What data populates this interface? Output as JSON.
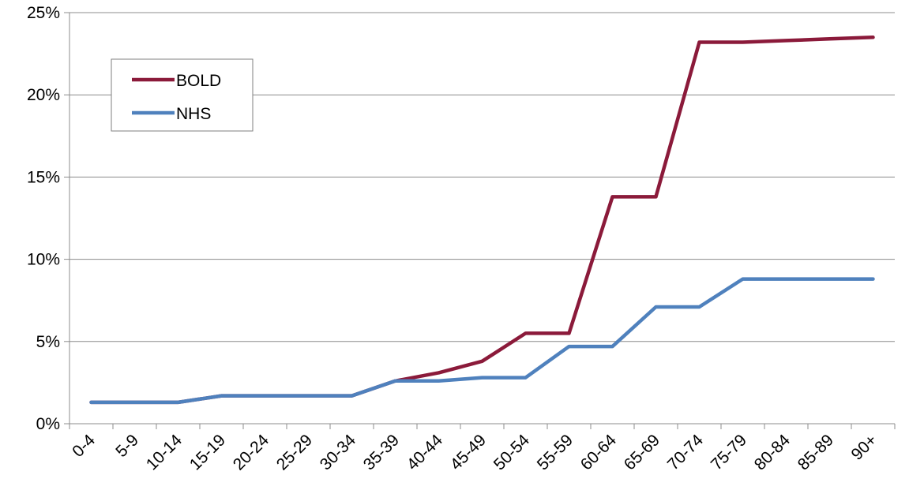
{
  "chart_data": {
    "type": "line",
    "categories": [
      "0-4",
      "5-9",
      "10-14",
      "15-19",
      "20-24",
      "25-29",
      "30-34",
      "35-39",
      "40-44",
      "45-49",
      "50-54",
      "55-59",
      "60-64",
      "65-69",
      "70-74",
      "75-79",
      "80-84",
      "85-89",
      "90+"
    ],
    "series": [
      {
        "name": "BOLD",
        "color": "#8B1A3A",
        "values": [
          1.3,
          1.3,
          1.3,
          1.7,
          1.7,
          1.7,
          1.7,
          2.6,
          3.1,
          3.8,
          5.5,
          5.5,
          13.8,
          13.8,
          23.2,
          23.2,
          23.3,
          23.4,
          23.5
        ]
      },
      {
        "name": "NHS",
        "color": "#4F81BD",
        "values": [
          1.3,
          1.3,
          1.3,
          1.7,
          1.7,
          1.7,
          1.7,
          2.6,
          2.6,
          2.8,
          2.8,
          4.7,
          4.7,
          7.1,
          7.1,
          8.8,
          8.8,
          8.8,
          8.8
        ]
      }
    ],
    "y_ticks": [
      "0%",
      "5%",
      "10%",
      "15%",
      "20%",
      "25%"
    ],
    "ylim": [
      0,
      25
    ],
    "grid": true,
    "legend_position": "top-left"
  }
}
